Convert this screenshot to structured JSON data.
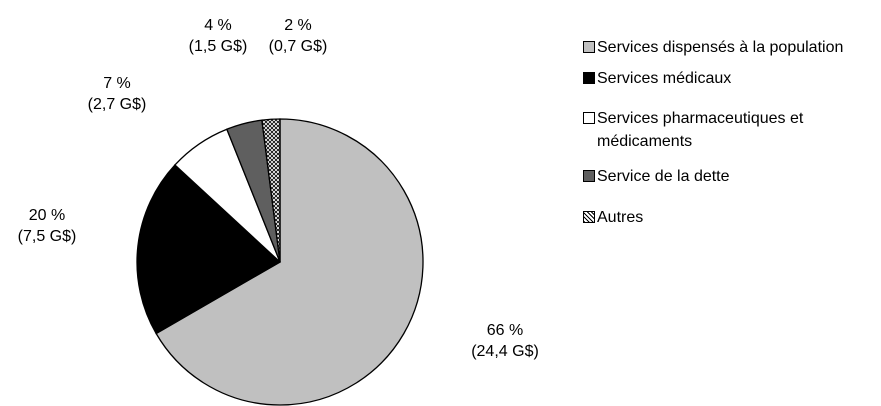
{
  "chart_data": {
    "type": "pie",
    "categories": [
      "Services dispensés à la population",
      "Services médicaux",
      "Services pharmaceutiques et médicaments",
      "Service de la dette",
      "Autres"
    ],
    "values": [
      66,
      20,
      7,
      4,
      2
    ],
    "value_labels": [
      "66 %",
      "20 %",
      "7 %",
      "4 %",
      "2 %"
    ],
    "amounts": [
      24.4,
      7.5,
      2.7,
      1.5,
      0.7
    ],
    "amount_labels": [
      "(24,4 G$)",
      "(7,5 G$)",
      "(2,7 G$)",
      "(1,5 G$)",
      "(0,7 G$)"
    ],
    "colors": [
      "#c0c0c0",
      "#000000",
      "#ffffff",
      "#5f5f5f",
      "#ffffff"
    ],
    "hatch": [
      false,
      false,
      false,
      false,
      true
    ],
    "legend": "right"
  }
}
